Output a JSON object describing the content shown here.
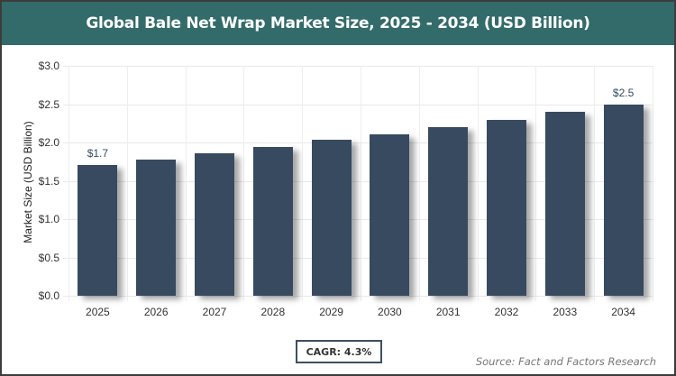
{
  "header": {
    "title": "Global Bale Net Wrap Market Size, 2025 - 2034 (USD Billion)"
  },
  "colors": {
    "header_bg": "#336b6a",
    "bar": "#374a60",
    "label": "#344a60"
  },
  "chart_data": {
    "type": "bar",
    "title": "Global Bale Net Wrap Market Size, 2025 - 2034 (USD Billion)",
    "xlabel": "",
    "ylabel": "Market Size (USD Billion)",
    "categories": [
      "2025",
      "2026",
      "2027",
      "2028",
      "2029",
      "2030",
      "2031",
      "2032",
      "2033",
      "2034"
    ],
    "values": [
      1.71,
      1.78,
      1.86,
      1.94,
      2.03,
      2.11,
      2.2,
      2.3,
      2.4,
      2.5
    ],
    "ylim": [
      0,
      3.0
    ],
    "yticks": [
      "$0.0",
      "$0.5",
      "$1.0",
      "$1.5",
      "$2.0",
      "$2.5",
      "$3.0"
    ],
    "data_labels": {
      "0": "$1.7",
      "9": "$2.5"
    },
    "grid": true,
    "legend": "none"
  },
  "footer": {
    "cagr": "CAGR: 4.3%",
    "source": "Source: Fact and Factors Research"
  }
}
